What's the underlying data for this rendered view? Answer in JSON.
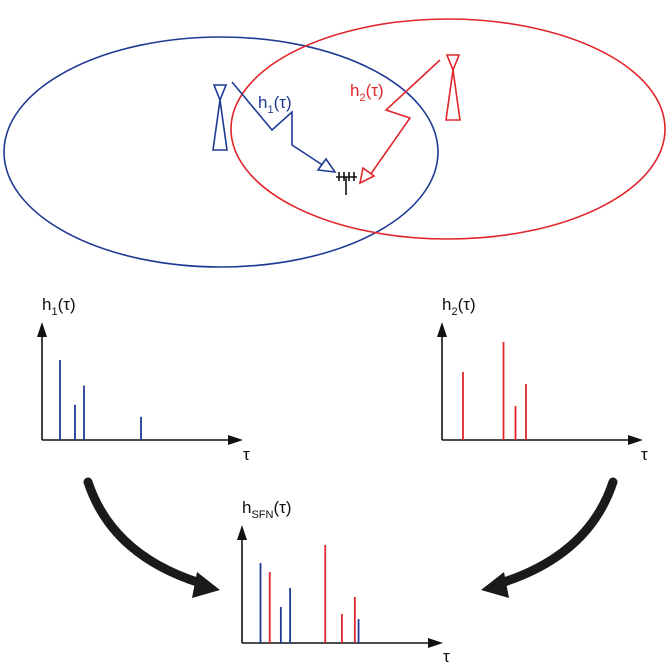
{
  "colors": {
    "tx1": "#1f3a93",
    "tx2": "#e0262a",
    "axis": "#111111",
    "arrow": "#1a1a1a"
  },
  "labels": {
    "link1": {
      "base": "h",
      "sub": "1",
      "arg": "(τ)"
    },
    "link2": {
      "base": "h",
      "sub": "2",
      "arg": "(τ)"
    },
    "tau": "τ"
  },
  "plots": {
    "h1": {
      "title": {
        "base": "h",
        "sub": "1",
        "arg": "(τ)"
      },
      "impulses": [
        {
          "tau": 0.12,
          "amp": 1.0,
          "tx": "tx1"
        },
        {
          "tau": 0.22,
          "amp": 0.44,
          "tx": "tx1"
        },
        {
          "tau": 0.28,
          "amp": 0.68,
          "tx": "tx1"
        },
        {
          "tau": 0.66,
          "amp": 0.29,
          "tx": "tx1"
        }
      ]
    },
    "h2": {
      "title": {
        "base": "h",
        "sub": "2",
        "arg": "(τ)"
      },
      "impulses": [
        {
          "tau": 0.14,
          "amp": 0.68,
          "tx": "tx2"
        },
        {
          "tau": 0.41,
          "amp": 0.98,
          "tx": "tx2"
        },
        {
          "tau": 0.49,
          "amp": 0.34,
          "tx": "tx2"
        },
        {
          "tau": 0.56,
          "amp": 0.56,
          "tx": "tx2"
        }
      ]
    },
    "hsfn": {
      "title": {
        "base": "h",
        "sub": "SFN",
        "arg": "(τ)"
      },
      "impulses": [
        {
          "tau": 0.1,
          "amp": 0.8,
          "tx": "tx1"
        },
        {
          "tau": 0.15,
          "amp": 0.71,
          "tx": "tx2"
        },
        {
          "tau": 0.21,
          "amp": 0.36,
          "tx": "tx1"
        },
        {
          "tau": 0.26,
          "amp": 0.55,
          "tx": "tx1"
        },
        {
          "tau": 0.45,
          "amp": 0.98,
          "tx": "tx2"
        },
        {
          "tau": 0.54,
          "amp": 0.29,
          "tx": "tx2"
        },
        {
          "tau": 0.61,
          "amp": 0.46,
          "tx": "tx2"
        },
        {
          "tau": 0.63,
          "amp": 0.24,
          "tx": "tx1"
        }
      ]
    }
  }
}
